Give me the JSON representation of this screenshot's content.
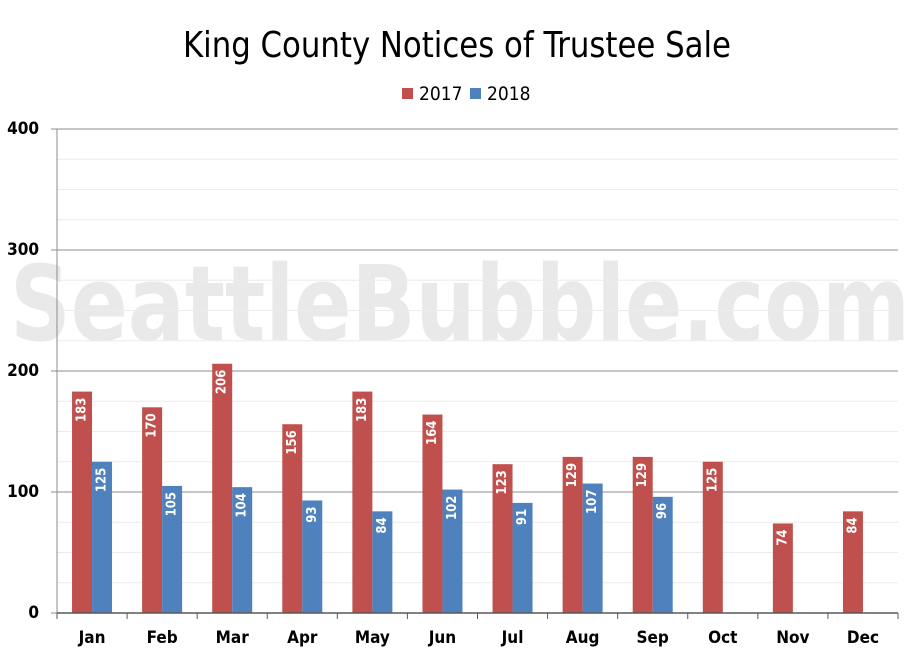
{
  "chart_data": {
    "type": "bar",
    "title": "King County Notices of Trustee Sale",
    "watermark": "SeattleBubble.com",
    "categories": [
      "Jan",
      "Feb",
      "Mar",
      "Apr",
      "May",
      "Jun",
      "Jul",
      "Aug",
      "Sep",
      "Oct",
      "Nov",
      "Dec"
    ],
    "series": [
      {
        "name": "2017",
        "color": "#c0504d",
        "values": [
          183,
          170,
          206,
          156,
          183,
          164,
          123,
          129,
          129,
          125,
          74,
          84
        ]
      },
      {
        "name": "2018",
        "color": "#4f81bd",
        "values": [
          125,
          105,
          104,
          93,
          84,
          102,
          91,
          107,
          96,
          null,
          null,
          null
        ]
      }
    ],
    "ylim": [
      0,
      400
    ],
    "yticks": [
      0,
      100,
      200,
      300,
      400
    ],
    "grid": true,
    "legend_position": "top-center",
    "data_labels": true
  }
}
